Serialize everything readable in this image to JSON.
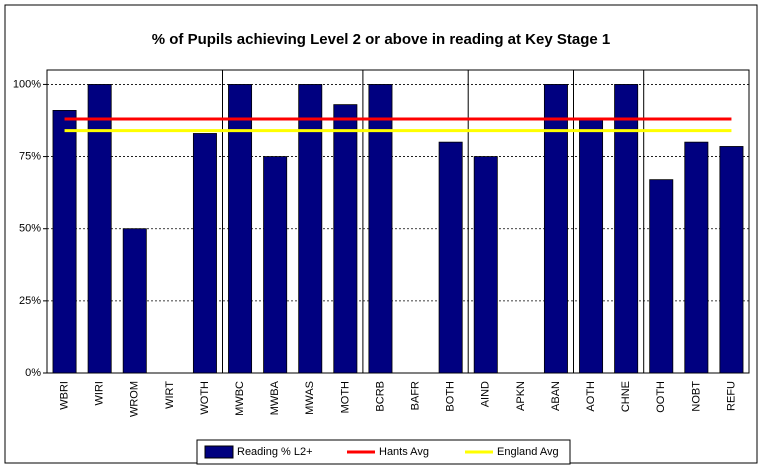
{
  "chart_data": {
    "type": "bar",
    "title": "% of Pupils achieving Level 2 or above in reading at Key Stage 1",
    "categories": [
      "WBRI",
      "WIRI",
      "WROM",
      "WIRT",
      "WOTH",
      "MWBC",
      "MWBA",
      "MWAS",
      "MOTH",
      "BCRB",
      "BAFR",
      "BOTH",
      "AIND",
      "APKN",
      "ABAN",
      "AOTH",
      "CHNE",
      "OOTH",
      "NOBT",
      "REFU"
    ],
    "series": [
      {
        "name": "Reading % L2+",
        "type": "bar",
        "color": "#000080",
        "values": [
          91,
          100,
          50,
          0,
          83,
          100,
          75,
          100,
          93,
          100,
          0,
          80,
          75,
          0,
          100,
          88,
          100,
          67,
          80,
          78.5
        ]
      },
      {
        "name": "Hants Avg",
        "type": "line",
        "color": "#ff0000",
        "values": [
          88,
          88,
          88,
          88,
          88,
          88,
          88,
          88,
          88,
          88,
          88,
          88,
          88,
          88,
          88,
          88,
          88,
          88,
          88,
          88
        ]
      },
      {
        "name": "England Avg",
        "type": "line",
        "color": "#ffff00",
        "values": [
          84,
          84,
          84,
          84,
          84,
          84,
          84,
          84,
          84,
          84,
          84,
          84,
          84,
          84,
          84,
          84,
          84,
          84,
          84,
          84
        ]
      }
    ],
    "ylim": [
      0,
      105
    ],
    "yticks": [
      {
        "value": 0,
        "label": "0%"
      },
      {
        "value": 25,
        "label": "25%"
      },
      {
        "value": 50,
        "label": "50%"
      },
      {
        "value": 75,
        "label": "75%"
      },
      {
        "value": 100,
        "label": "100%"
      }
    ],
    "grid": true,
    "legend": "bottom"
  }
}
